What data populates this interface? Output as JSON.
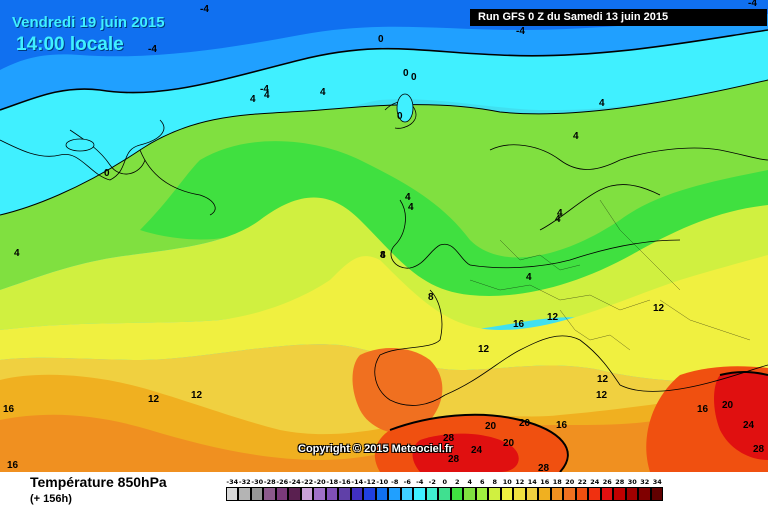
{
  "header": {
    "date": "Vendredi 19 juin 2015",
    "time": "14:00 locale",
    "run": "Run GFS 0 Z du Samedi 13 juin 2015"
  },
  "footer": {
    "parameter": "Température 850hPa",
    "lead_time": "(+ 156h)",
    "copyright": "Copyright © 2015 Meteociel.fr"
  },
  "legend": {
    "values": [
      "-34",
      "-32",
      "-30",
      "-28",
      "-26",
      "-24",
      "-22",
      "-20",
      "-18",
      "-16",
      "-14",
      "-12",
      "-10",
      "-8",
      "-6",
      "-4",
      "-2",
      "0",
      "2",
      "4",
      "6",
      "8",
      "10",
      "12",
      "14",
      "16",
      "18",
      "20",
      "22",
      "24",
      "26",
      "28",
      "30",
      "32",
      "34"
    ],
    "colors": [
      "#d9d9d9",
      "#b4b4b4",
      "#969696",
      "#8c5a8c",
      "#7a3a7a",
      "#5a2050",
      "#c8a0d8",
      "#a070c8",
      "#8050b8",
      "#6040a8",
      "#4030c0",
      "#2040e0",
      "#1070f0",
      "#20a0ff",
      "#40d0ff",
      "#40f0ff",
      "#40f0d0",
      "#40e090",
      "#40e040",
      "#80e040",
      "#a0f040",
      "#d0f040",
      "#f0f040",
      "#f0e040",
      "#f0d040",
      "#f0b020",
      "#f09020",
      "#f07020",
      "#f05010",
      "#f03010",
      "#e01010",
      "#c00000",
      "#a00000",
      "#800000",
      "#600000"
    ]
  },
  "contour_labels": [
    {
      "id": "neg4-a",
      "text": "-4"
    },
    {
      "id": "neg4-b",
      "text": "-4"
    },
    {
      "id": "neg4-c",
      "text": "-4"
    },
    {
      "id": "neg4-d",
      "text": "-4"
    },
    {
      "id": "neg4-e",
      "text": "-4"
    },
    {
      "id": "zero-a",
      "text": "0"
    },
    {
      "id": "zero-b",
      "text": "0"
    },
    {
      "id": "zero-c",
      "text": "0"
    },
    {
      "id": "zero-d",
      "text": "0"
    },
    {
      "id": "zero-e",
      "text": "0"
    },
    {
      "id": "four-a",
      "text": "4"
    },
    {
      "id": "four-b",
      "text": "4"
    },
    {
      "id": "four-c",
      "text": "4"
    },
    {
      "id": "four-d",
      "text": "4"
    },
    {
      "id": "four-e",
      "text": "4"
    },
    {
      "id": "four-f",
      "text": "4"
    },
    {
      "id": "four-g",
      "text": "4"
    },
    {
      "id": "four-h",
      "text": "4"
    },
    {
      "id": "four-i",
      "text": "4"
    },
    {
      "id": "four-j",
      "text": "4"
    },
    {
      "id": "four-k",
      "text": "4"
    },
    {
      "id": "four-l",
      "text": "4"
    },
    {
      "id": "eight-a",
      "text": "8"
    },
    {
      "id": "eight-b",
      "text": "8"
    },
    {
      "id": "twelve-a",
      "text": "12"
    },
    {
      "id": "twelve-b",
      "text": "12"
    },
    {
      "id": "twelve-c",
      "text": "12"
    },
    {
      "id": "twelve-d",
      "text": "12"
    },
    {
      "id": "twelve-e",
      "text": "12"
    },
    {
      "id": "twelve-f",
      "text": "12"
    },
    {
      "id": "twelve-g",
      "text": "12"
    },
    {
      "id": "sixteen-a",
      "text": "16"
    },
    {
      "id": "sixteen-b",
      "text": "16"
    },
    {
      "id": "sixteen-c",
      "text": "16"
    },
    {
      "id": "sixteen-d",
      "text": "16"
    },
    {
      "id": "sixteen-e",
      "text": "16"
    },
    {
      "id": "twenty-a",
      "text": "20"
    },
    {
      "id": "twenty-b",
      "text": "20"
    },
    {
      "id": "twenty-c",
      "text": "20"
    },
    {
      "id": "twenty-d",
      "text": "20"
    },
    {
      "id": "twentyfour-a",
      "text": "24"
    },
    {
      "id": "twentyfour-b",
      "text": "24"
    },
    {
      "id": "twentyeight-a",
      "text": "28"
    },
    {
      "id": "twentyeight-b",
      "text": "28"
    },
    {
      "id": "twentyeight-c",
      "text": "28"
    },
    {
      "id": "twentyeight-d",
      "text": "28"
    }
  ]
}
